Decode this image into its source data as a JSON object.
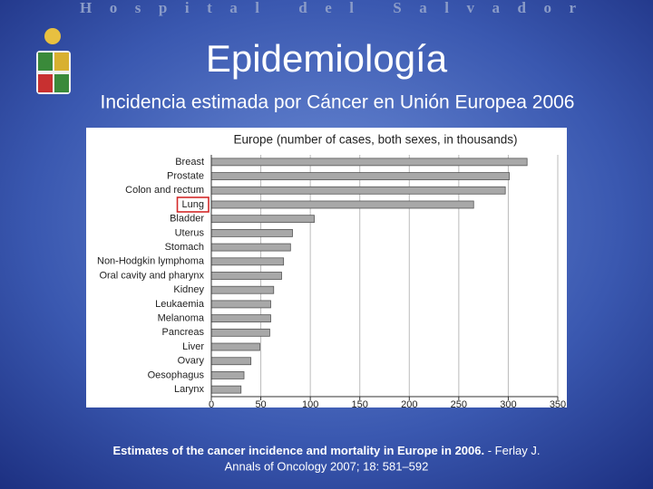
{
  "header": "Hospital del Salvador",
  "title": "Epidemiología",
  "subtitle": "Incidencia estimada por Cáncer en Unión Europea 2006",
  "chart_data": {
    "type": "barh",
    "title": "Europe (number of cases, both sexes, in thousands)",
    "categories": [
      "Breast",
      "Prostate",
      "Colon and rectum",
      "Lung",
      "Bladder",
      "Uterus",
      "Stomach",
      "Non-Hodgkin lymphoma",
      "Oral cavity and pharynx",
      "Kidney",
      "Leukaemia",
      "Melanoma",
      "Pancreas",
      "Liver",
      "Ovary",
      "Oesophagus",
      "Larynx"
    ],
    "values": [
      319,
      301,
      297,
      265,
      104,
      82,
      80,
      73,
      71,
      63,
      60,
      60,
      59,
      49,
      40,
      33,
      30
    ],
    "color": "#a8a8a8",
    "highlight": 3,
    "highlight_color": "#d42a2a",
    "xlim": [
      0,
      350
    ],
    "xticks": [
      0,
      50,
      100,
      150,
      200,
      250,
      300,
      350
    ],
    "grid": true
  },
  "footer": {
    "bold": "Estimates of the cancer incidence and mortality in Europe in 2006.",
    "author": " - Ferlay J.",
    "journal": "Annals of Oncology 2007; 18: 581–592"
  }
}
